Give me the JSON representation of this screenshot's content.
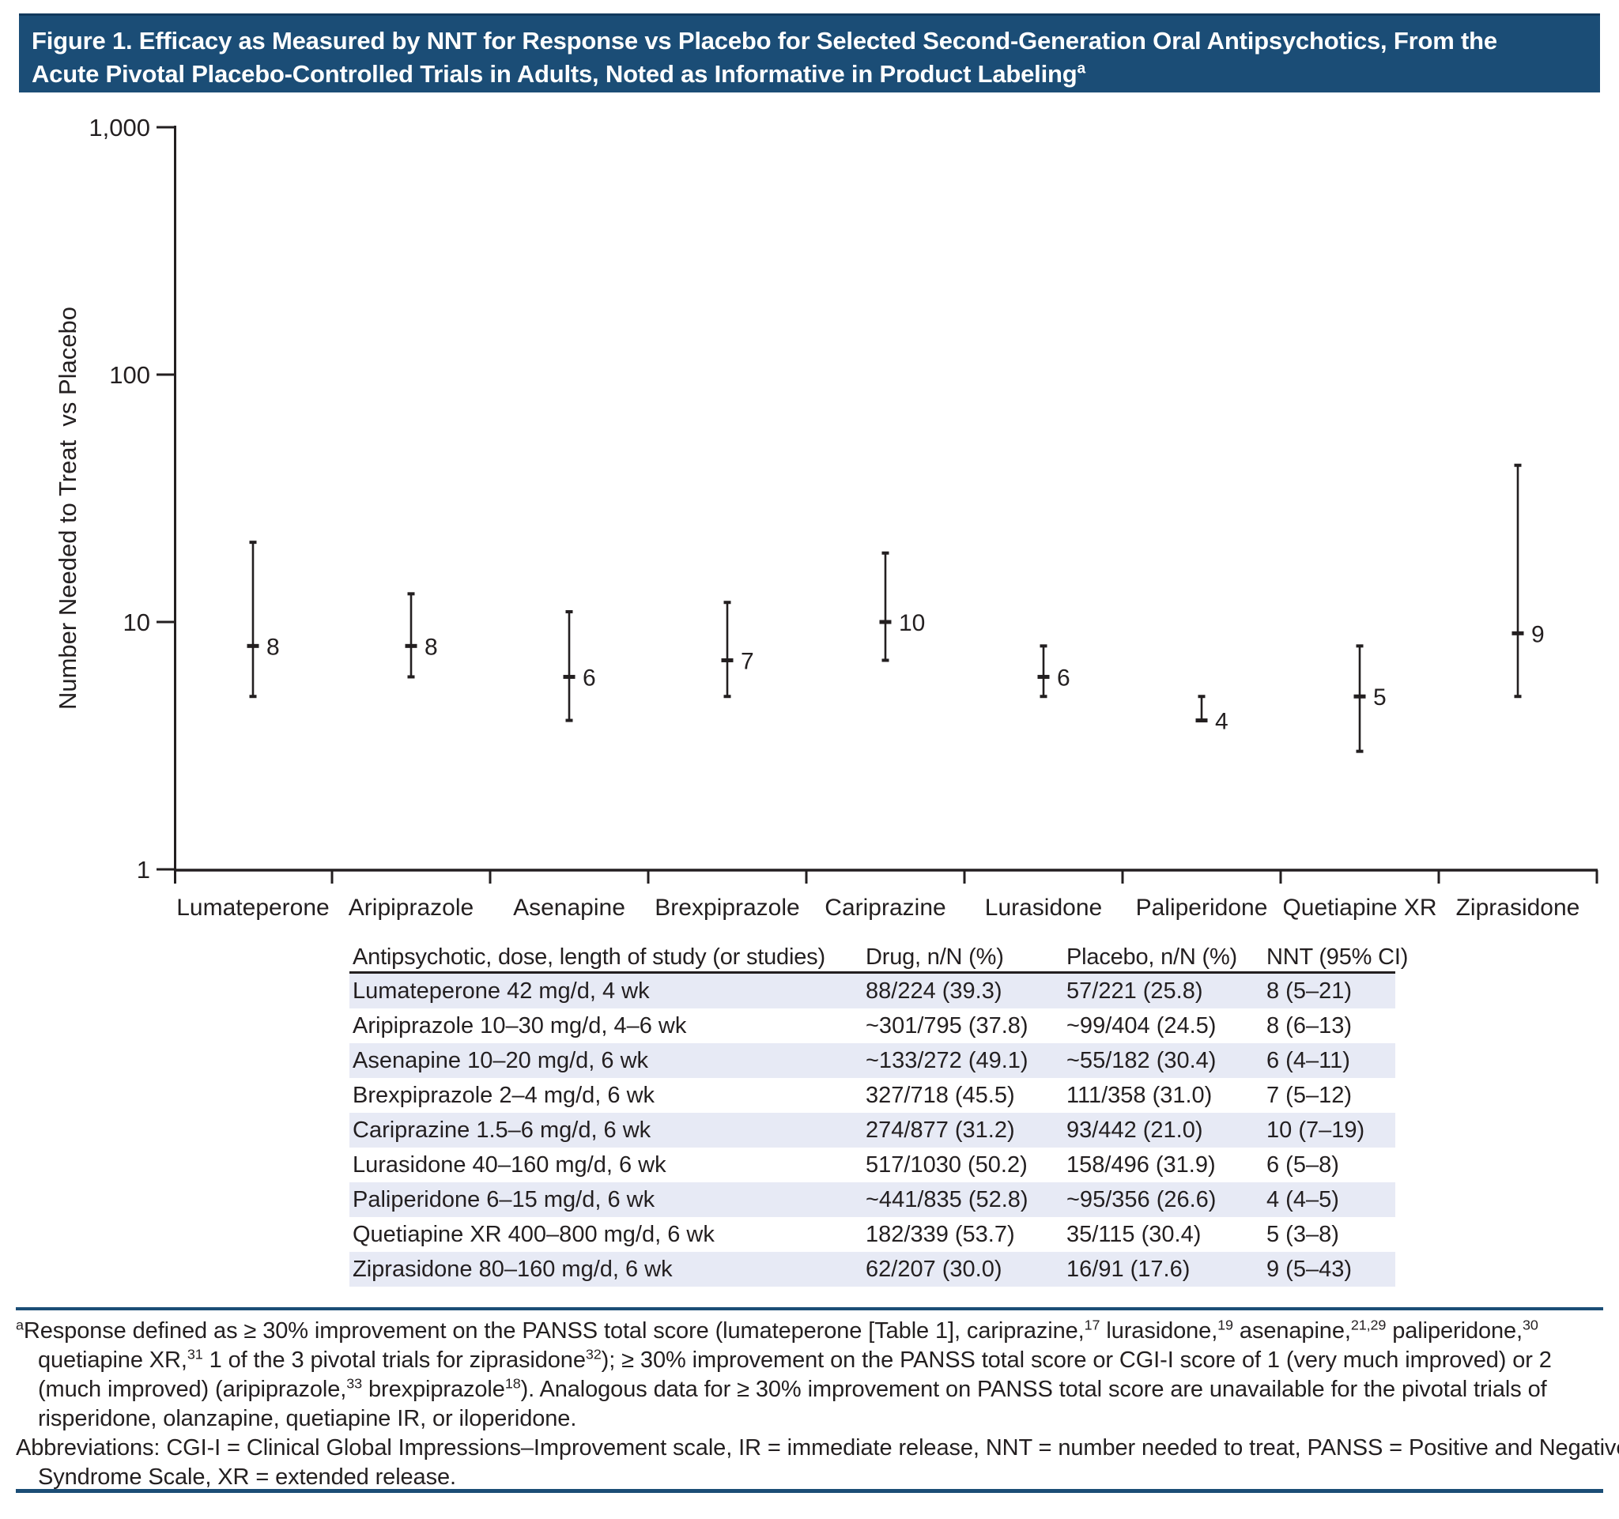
{
  "colors": {
    "titlebar_bg": "#1b4d76",
    "titlebar_text": "#ffffff",
    "ink": "#231f20",
    "row_shade": "#e7eaf5",
    "rule_blue": "#1b4d76"
  },
  "title": {
    "lines": [
      [
        {
          "t": "Figure 1. Efficacy as Measured by NNT for Response vs Placebo for Selected Second-Generation Oral Antipsychotics, From the"
        }
      ],
      [
        {
          "t": "Acute Pivotal Placebo-Controlled Trials in Adults, Noted as Informative in Product Labeling"
        },
        {
          "t": "a",
          "sup": true
        }
      ]
    ]
  },
  "chart_data": {
    "type": "scatter",
    "subtype": "point-estimate-with-95ci-error-bars",
    "title": "",
    "xlabel": "",
    "ylabel": "Number Needed to Treat  vs Placebo",
    "yscale": "log",
    "ylim": [
      1,
      1000
    ],
    "grid": false,
    "yticks": [
      {
        "value": 1,
        "label": "1"
      },
      {
        "value": 10,
        "label": "10"
      },
      {
        "value": 100,
        "label": "100"
      },
      {
        "value": 1000,
        "label": "1,000"
      }
    ],
    "categories": [
      "Lumateperone",
      "Aripiprazole",
      "Asenapine",
      "Brexpiprazole",
      "Cariprazine",
      "Lurasidone",
      "Paliperidone",
      "Quetiapine XR",
      "Ziprasidone"
    ],
    "points": [
      {
        "category": "Lumateperone",
        "nnt": 8,
        "ci_low": 5,
        "ci_high": 21,
        "label": "8"
      },
      {
        "category": "Aripiprazole",
        "nnt": 8,
        "ci_low": 6,
        "ci_high": 13,
        "label": "8"
      },
      {
        "category": "Asenapine",
        "nnt": 6,
        "ci_low": 4,
        "ci_high": 11,
        "label": "6"
      },
      {
        "category": "Brexpiprazole",
        "nnt": 7,
        "ci_low": 5,
        "ci_high": 12,
        "label": "7"
      },
      {
        "category": "Cariprazine",
        "nnt": 10,
        "ci_low": 7,
        "ci_high": 19,
        "label": "10"
      },
      {
        "category": "Lurasidone",
        "nnt": 6,
        "ci_low": 5,
        "ci_high": 8,
        "label": "6"
      },
      {
        "category": "Paliperidone",
        "nnt": 4,
        "ci_low": 4,
        "ci_high": 5,
        "label": "4"
      },
      {
        "category": "Quetiapine XR",
        "nnt": 5,
        "ci_low": 3,
        "ci_high": 8,
        "label": "5"
      },
      {
        "category": "Ziprasidone",
        "nnt": 9,
        "ci_low": 5,
        "ci_high": 43,
        "label": "9"
      }
    ]
  },
  "table": {
    "columns": [
      "Antipsychotic, dose, length of study (or studies)",
      "Drug, n/N (%)",
      "Placebo, n/N (%)",
      "NNT (95% CI)"
    ],
    "rows": [
      [
        "Lumateperone 42 mg/d, 4 wk",
        "88/224 (39.3)",
        "57/221 (25.8)",
        "8 (5–21)"
      ],
      [
        "Aripiprazole 10–30 mg/d, 4–6 wk",
        "~301/795 (37.8)",
        "~99/404 (24.5)",
        "8 (6–13)"
      ],
      [
        "Asenapine 10–20 mg/d, 6 wk",
        "~133/272 (49.1)",
        "~55/182 (30.4)",
        "6 (4–11)"
      ],
      [
        "Brexpiprazole 2–4 mg/d, 6 wk",
        "327/718 (45.5)",
        "111/358 (31.0)",
        "7 (5–12)"
      ],
      [
        "Cariprazine 1.5–6 mg/d, 6 wk",
        "274/877 (31.2)",
        "93/442 (21.0)",
        "10 (7–19)"
      ],
      [
        "Lurasidone 40–160 mg/d, 6 wk",
        "517/1030 (50.2)",
        "158/496 (31.9)",
        "6 (5–8)"
      ],
      [
        "Paliperidone 6–15 mg/d, 6 wk",
        "~441/835 (52.8)",
        "~95/356 (26.6)",
        "4 (4–5)"
      ],
      [
        "Quetiapine XR 400–800 mg/d, 6 wk",
        "182/339 (53.7)",
        "35/115 (30.4)",
        "5 (3–8)"
      ],
      [
        "Ziprasidone 80–160 mg/d, 6 wk",
        "62/207 (30.0)",
        "16/91 (17.6)",
        "9 (5–43)"
      ]
    ]
  },
  "footnotes": {
    "paragraphs": [
      {
        "name": "footnote-a",
        "lines": [
          {
            "indent": false,
            "segs": [
              {
                "t": "a",
                "sup": true
              },
              {
                "t": "Response defined as ≥ 30% improvement on the PANSS total score (lumateperone [Table 1], cariprazine,"
              },
              {
                "t": "17",
                "sup": true
              },
              {
                "t": " lurasidone,"
              },
              {
                "t": "19",
                "sup": true
              },
              {
                "t": " asenapine,"
              },
              {
                "t": "21,29",
                "sup": true
              },
              {
                "t": " paliperidone,"
              },
              {
                "t": "30",
                "sup": true
              }
            ]
          },
          {
            "indent": true,
            "segs": [
              {
                "t": "quetiapine XR,"
              },
              {
                "t": "31",
                "sup": true
              },
              {
                "t": " 1 of the 3 pivotal trials for ziprasidone"
              },
              {
                "t": "32",
                "sup": true
              },
              {
                "t": "); ≥ 30% improvement on the PANSS total score or CGI-I score of 1 (very much improved) or 2"
              }
            ]
          },
          {
            "indent": true,
            "segs": [
              {
                "t": "(much improved) (aripiprazole,"
              },
              {
                "t": "33",
                "sup": true
              },
              {
                "t": " brexpiprazole"
              },
              {
                "t": "18",
                "sup": true
              },
              {
                "t": "). Analogous data for ≥ 30% improvement on PANSS total score are unavailable for the pivotal trials of"
              }
            ]
          },
          {
            "indent": true,
            "segs": [
              {
                "t": "risperidone, olanzapine, quetiapine IR, or iloperidone."
              }
            ]
          }
        ]
      },
      {
        "name": "abbreviations",
        "lines": [
          {
            "indent": false,
            "segs": [
              {
                "t": "Abbreviations: CGI-I = Clinical Global Impressions–Improvement scale, IR = immediate release, NNT = number needed to treat, PANSS = Positive and Negative"
              }
            ]
          },
          {
            "indent": true,
            "segs": [
              {
                "t": "Syndrome Scale, XR = extended release."
              }
            ]
          }
        ]
      }
    ]
  }
}
